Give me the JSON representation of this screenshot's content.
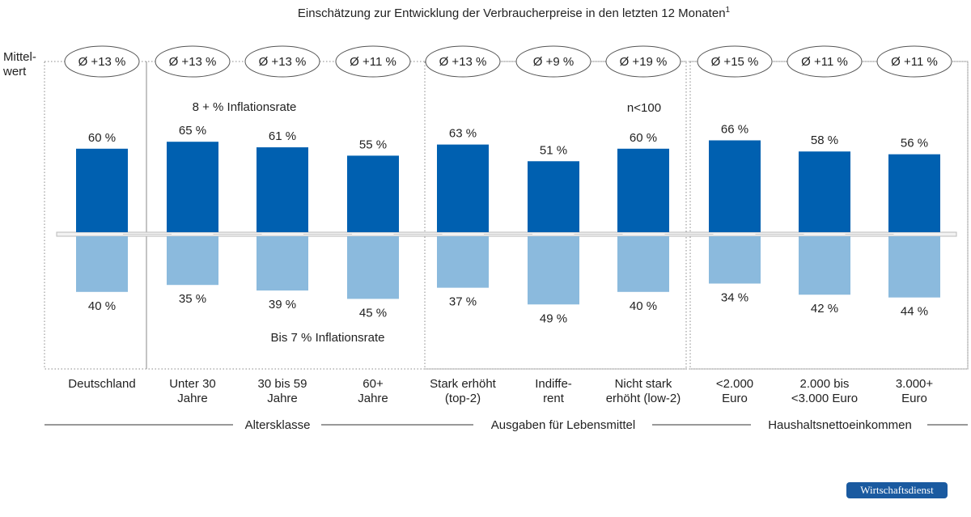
{
  "chart_data": {
    "type": "bar",
    "title": "Einschätzung zur Entwicklung der Verbraucherpreise in den letzten 12 Monaten",
    "title_footnote": "1",
    "mean_row_label_1": "Mittel-",
    "mean_row_label_2": "wert",
    "categories": [
      {
        "label": [
          "Deutschland"
        ],
        "mean": "Ø +13 %"
      },
      {
        "label": [
          "Unter 30",
          "Jahre"
        ],
        "mean": "Ø +13 %"
      },
      {
        "label": [
          "30 bis 59",
          "Jahre"
        ],
        "mean": "Ø +13 %"
      },
      {
        "label": [
          "60+",
          "Jahre"
        ],
        "mean": "Ø +11 %"
      },
      {
        "label": [
          "Stark erhöht",
          "(top-2)"
        ],
        "mean": "Ø +13 %"
      },
      {
        "label": [
          "Indiffe-",
          "rent"
        ],
        "mean": "Ø +9 %"
      },
      {
        "label": [
          "Nicht stark",
          "erhöht (low-2)"
        ],
        "mean": "Ø +19 %"
      },
      {
        "label": [
          "<2.000",
          "Euro"
        ],
        "mean": "Ø +15 %"
      },
      {
        "label": [
          "2.000 bis",
          "<3.000 Euro"
        ],
        "mean": "Ø +11 %"
      },
      {
        "label": [
          "3.000+",
          "Euro"
        ],
        "mean": "Ø +11 %"
      }
    ],
    "series": [
      {
        "name": "8 + % Inflationsrate",
        "color": "#0060b0",
        "values": [
          60,
          65,
          61,
          55,
          63,
          51,
          60,
          66,
          58,
          56
        ],
        "value_labels": [
          "60 %",
          "65 %",
          "61 %",
          "55 %",
          "63 %",
          "51 %",
          "60 %",
          "66 %",
          "58 %",
          "56 %"
        ]
      },
      {
        "name": "Bis 7 % Inflationsrate",
        "color": "#8bbadd",
        "values": [
          40,
          35,
          39,
          45,
          37,
          49,
          40,
          34,
          42,
          44
        ],
        "value_labels": [
          "40 %",
          "35 %",
          "39 %",
          "45 %",
          "37 %",
          "49 %",
          "40 %",
          "34 %",
          "42 %",
          "44 %"
        ]
      }
    ],
    "annotation": "n<100",
    "groups": [
      "Altersklasse",
      "Ausgaben für Lebensmittel",
      "Haushaltsnettoeinkommen"
    ],
    "ylim": [
      -50,
      70
    ],
    "source_badge": "Wirtschaftsdienst"
  }
}
